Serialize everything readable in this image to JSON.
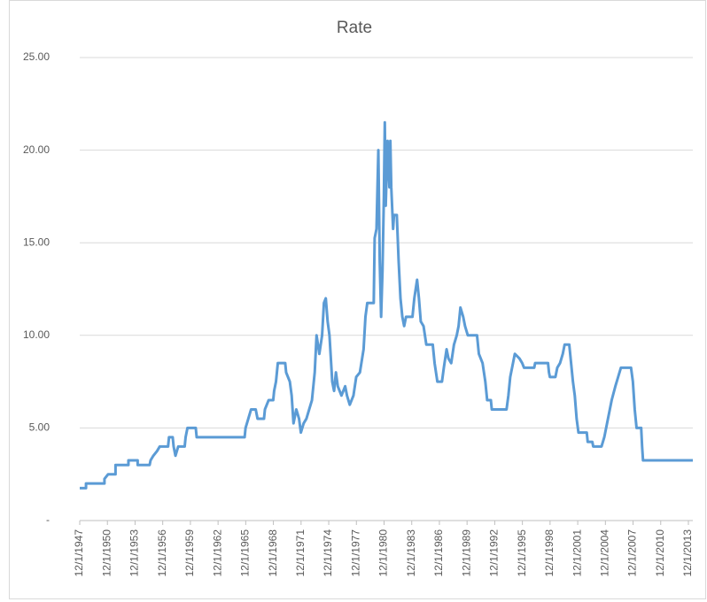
{
  "chart_data": {
    "type": "line",
    "title": "Rate",
    "x": [
      1947.92,
      1948.6,
      1948.6,
      1950.6,
      1950.6,
      1951.0,
      1951.8,
      1951.8,
      1953.2,
      1953.2,
      1954.2,
      1954.2,
      1955.5,
      1955.6,
      1955.9,
      1956.3,
      1956.6,
      1957.5,
      1957.6,
      1958.0,
      1958.1,
      1958.3,
      1958.6,
      1959.3,
      1959.4,
      1959.6,
      1960.5,
      1960.6,
      1965.8,
      1965.9,
      1966.2,
      1966.5,
      1967.0,
      1967.2,
      1967.9,
      1968.0,
      1968.4,
      1968.9,
      1969.0,
      1969.2,
      1969.4,
      1970.2,
      1970.3,
      1970.7,
      1970.9,
      1971.1,
      1971.4,
      1971.7,
      1971.9,
      1972.2,
      1972.5,
      1972.8,
      1973.1,
      1973.4,
      1973.6,
      1973.9,
      1974.2,
      1974.4,
      1974.6,
      1974.8,
      1975.0,
      1975.3,
      1975.5,
      1975.7,
      1975.9,
      1976.3,
      1976.7,
      1976.9,
      1977.2,
      1977.6,
      1977.9,
      1978.3,
      1978.7,
      1978.9,
      1979.1,
      1979.8,
      1979.9,
      1980.1,
      1980.3,
      1980.45,
      1980.6,
      1980.75,
      1980.9,
      1981.0,
      1981.1,
      1981.3,
      1981.5,
      1981.6,
      1981.7,
      1981.9,
      1982.0,
      1982.3,
      1982.5,
      1982.7,
      1982.9,
      1983.1,
      1983.3,
      1984.0,
      1984.2,
      1984.5,
      1984.7,
      1984.9,
      1985.2,
      1985.5,
      1986.2,
      1986.4,
      1986.7,
      1987.2,
      1987.4,
      1987.7,
      1987.9,
      1988.2,
      1988.5,
      1988.8,
      1989.0,
      1989.2,
      1989.5,
      1989.7,
      1990.0,
      1991.0,
      1991.2,
      1991.6,
      1991.9,
      1992.1,
      1992.5,
      1992.6,
      1994.2,
      1994.4,
      1994.6,
      1994.9,
      1995.1,
      1995.6,
      1995.9,
      1996.1,
      1997.2,
      1997.3,
      1998.7,
      1998.8,
      1998.9,
      1999.5,
      1999.7,
      2000.0,
      2000.3,
      2000.5,
      2001.0,
      2001.2,
      2001.4,
      2001.6,
      2001.8,
      2002.0,
      2002.9,
      2003.0,
      2003.5,
      2003.6,
      2004.5,
      2004.8,
      2005.2,
      2005.6,
      2006.0,
      2006.3,
      2006.6,
      2007.7,
      2007.9,
      2008.1,
      2008.3,
      2008.8,
      2008.9,
      2009.0,
      2014.4
    ],
    "series": [
      {
        "name": "Rate",
        "color": "#5b9bd5",
        "values": [
          1.75,
          1.75,
          2.0,
          2.0,
          2.25,
          2.5,
          2.5,
          3.0,
          3.0,
          3.25,
          3.25,
          3.0,
          3.0,
          3.25,
          3.5,
          3.75,
          4.0,
          4.0,
          4.5,
          4.5,
          4.0,
          3.5,
          4.0,
          4.0,
          4.5,
          5.0,
          5.0,
          4.5,
          4.5,
          5.0,
          5.5,
          6.0,
          6.0,
          5.5,
          5.5,
          6.0,
          6.5,
          6.5,
          7.0,
          7.5,
          8.5,
          8.5,
          8.0,
          7.5,
          6.75,
          5.25,
          6.0,
          5.5,
          4.75,
          5.25,
          5.5,
          6.0,
          6.5,
          8.0,
          10.0,
          9.0,
          10.0,
          11.75,
          12.0,
          10.75,
          10.0,
          7.5,
          7.0,
          8.0,
          7.25,
          6.75,
          7.25,
          6.75,
          6.25,
          6.75,
          7.75,
          8.0,
          9.25,
          11.0,
          11.75,
          11.75,
          15.25,
          15.75,
          20.0,
          14.0,
          11.0,
          13.5,
          17.5,
          21.5,
          17.0,
          20.5,
          18.0,
          20.5,
          18.0,
          15.75,
          16.5,
          16.5,
          14.0,
          12.0,
          11.0,
          10.5,
          11.0,
          11.0,
          12.0,
          13.0,
          12.0,
          10.75,
          10.5,
          9.5,
          9.5,
          8.5,
          7.5,
          7.5,
          8.25,
          9.25,
          8.75,
          8.5,
          9.5,
          10.0,
          10.5,
          11.5,
          11.0,
          10.5,
          10.0,
          10.0,
          9.0,
          8.5,
          7.5,
          6.5,
          6.5,
          6.0,
          6.0,
          6.75,
          7.75,
          8.5,
          9.0,
          8.75,
          8.5,
          8.25,
          8.25,
          8.5,
          8.5,
          8.0,
          7.75,
          7.75,
          8.25,
          8.5,
          9.0,
          9.5,
          9.5,
          8.5,
          7.5,
          6.75,
          5.5,
          4.75,
          4.75,
          4.25,
          4.25,
          4.0,
          4.0,
          4.5,
          5.5,
          6.5,
          7.25,
          7.75,
          8.25,
          8.25,
          7.5,
          6.0,
          5.0,
          5.0,
          4.0,
          3.25,
          3.25
        ]
      }
    ],
    "xlim": [
      1947.92,
      2014.4
    ],
    "xticks": [
      {
        "value": 1947.92,
        "label": "12/1/1947"
      },
      {
        "value": 1950.92,
        "label": "12/1/1950"
      },
      {
        "value": 1953.92,
        "label": "12/1/1953"
      },
      {
        "value": 1956.92,
        "label": "12/1/1956"
      },
      {
        "value": 1959.92,
        "label": "12/1/1959"
      },
      {
        "value": 1962.92,
        "label": "12/1/1962"
      },
      {
        "value": 1965.92,
        "label": "12/1/1965"
      },
      {
        "value": 1968.92,
        "label": "12/1/1968"
      },
      {
        "value": 1971.92,
        "label": "12/1/1971"
      },
      {
        "value": 1974.92,
        "label": "12/1/1974"
      },
      {
        "value": 1977.92,
        "label": "12/1/1977"
      },
      {
        "value": 1980.92,
        "label": "12/1/1980"
      },
      {
        "value": 1983.92,
        "label": "12/1/1983"
      },
      {
        "value": 1986.92,
        "label": "12/1/1986"
      },
      {
        "value": 1989.92,
        "label": "12/1/1989"
      },
      {
        "value": 1992.92,
        "label": "12/1/1992"
      },
      {
        "value": 1995.92,
        "label": "12/1/1995"
      },
      {
        "value": 1998.92,
        "label": "12/1/1998"
      },
      {
        "value": 2001.92,
        "label": "12/1/2001"
      },
      {
        "value": 2004.92,
        "label": "12/1/2004"
      },
      {
        "value": 2007.92,
        "label": "12/1/2007"
      },
      {
        "value": 2010.92,
        "label": "12/1/2010"
      },
      {
        "value": 2013.92,
        "label": "12/1/2013"
      }
    ],
    "ylim": [
      0,
      25
    ],
    "yticks": [
      {
        "value": 0,
        "label": "-"
      },
      {
        "value": 5,
        "label": "5.00"
      },
      {
        "value": 10,
        "label": "10.00"
      },
      {
        "value": 15,
        "label": "15.00"
      },
      {
        "value": 20,
        "label": "20.00"
      },
      {
        "value": 25,
        "label": "25.00"
      }
    ],
    "grid": true
  }
}
